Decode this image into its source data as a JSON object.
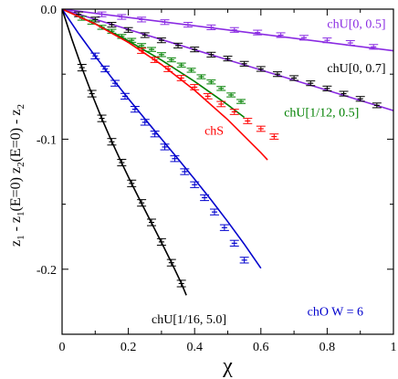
{
  "chart_data": {
    "type": "line",
    "xlabel": "χ",
    "ylabel": "z₁ - z₁(E=0)   z₂(E=0) - z₂",
    "ylabel_parts": {
      "bottom": "z",
      "bottom_sub": "1",
      "bottom_rest": " - z",
      "bottom_sub2": "1",
      "bottom_tail": "(E=0)",
      "top": "z",
      "top_sub": "2",
      "top_rest": "(E=0) - z",
      "top_sub2": "2"
    },
    "xlim": [
      0,
      1
    ],
    "ylim": [
      -0.25,
      0
    ],
    "xticks": [
      0,
      0.2,
      0.4,
      0.6,
      0.8,
      1
    ],
    "xtick_labels": [
      "0",
      "0.2",
      "0.4",
      "0.6",
      "0.8",
      "1"
    ],
    "yticks": [
      0,
      -0.1,
      -0.2
    ],
    "ytick_labels": [
      "0.0",
      "-0.1",
      "-0.2"
    ],
    "grid": false,
    "series": [
      {
        "name": "chU[0, 0.5]",
        "color": "#8a2be2",
        "fit_curve": {
          "x": [
            0,
            1
          ],
          "y": [
            0,
            -0.032
          ]
        },
        "points": {
          "x": [
            0.12,
            0.18,
            0.24,
            0.31,
            0.38,
            0.45,
            0.52,
            0.59,
            0.66,
            0.73,
            0.8,
            0.87,
            0.94
          ],
          "y": [
            -0.004,
            -0.006,
            -0.008,
            -0.01,
            -0.012,
            -0.014,
            -0.016,
            -0.018,
            -0.02,
            -0.022,
            -0.024,
            -0.026,
            -0.029
          ],
          "err": 0.0018
        }
      },
      {
        "name": "chU[0, 0.7]",
        "color": "#000000",
        "fit_curve": {
          "x": [
            0,
            0.1,
            0.2,
            0.3,
            0.4,
            0.5,
            0.6,
            0.7,
            0.8,
            0.9,
            1.0
          ],
          "y": [
            0,
            -0.0078,
            -0.0156,
            -0.0234,
            -0.0312,
            -0.039,
            -0.0468,
            -0.0546,
            -0.0624,
            -0.0702,
            -0.078
          ]
        },
        "fit_color": "#8a2be2",
        "points": {
          "x": [
            0.05,
            0.1,
            0.15,
            0.2,
            0.25,
            0.3,
            0.35,
            0.4,
            0.45,
            0.5,
            0.55,
            0.6,
            0.65,
            0.7,
            0.75,
            0.8,
            0.85,
            0.9,
            0.95
          ],
          "y": [
            -0.004,
            -0.008,
            -0.012,
            -0.016,
            -0.02,
            -0.024,
            -0.028,
            -0.031,
            -0.035,
            -0.038,
            -0.042,
            -0.046,
            -0.05,
            -0.053,
            -0.057,
            -0.061,
            -0.065,
            -0.069,
            -0.074
          ],
          "err": 0.0018
        }
      },
      {
        "name": "chU[1/12, 0.5]",
        "color": "#008000",
        "fit_curve": {
          "x": [
            0,
            0.1,
            0.2,
            0.3,
            0.4,
            0.5,
            0.55
          ],
          "y": [
            0,
            -0.0112,
            -0.0244,
            -0.0392,
            -0.0556,
            -0.0736,
            -0.0832
          ]
        },
        "points": {
          "x": [
            0.06,
            0.09,
            0.12,
            0.15,
            0.18,
            0.21,
            0.24,
            0.27,
            0.3,
            0.33,
            0.36,
            0.39,
            0.42,
            0.45,
            0.48,
            0.51,
            0.54
          ],
          "y": [
            -0.007,
            -0.01,
            -0.014,
            -0.017,
            -0.021,
            -0.024,
            -0.028,
            -0.031,
            -0.035,
            -0.039,
            -0.043,
            -0.047,
            -0.052,
            -0.056,
            -0.061,
            -0.066,
            -0.071
          ],
          "err": 0.0015
        }
      },
      {
        "name": "chS",
        "color": "#ff0000",
        "fit_curve": {
          "x": [
            0,
            0.1,
            0.2,
            0.3,
            0.4,
            0.5,
            0.6,
            0.62
          ],
          "y": [
            0,
            -0.0114,
            -0.0256,
            -0.0426,
            -0.0624,
            -0.085,
            -0.1104,
            -0.1159
          ]
        },
        "points": {
          "x": [
            0.24,
            0.28,
            0.32,
            0.36,
            0.4,
            0.44,
            0.48,
            0.52,
            0.56,
            0.6,
            0.64
          ],
          "y": [
            -0.032,
            -0.039,
            -0.046,
            -0.053,
            -0.06,
            -0.067,
            -0.073,
            -0.079,
            -0.086,
            -0.092,
            -0.098
          ],
          "err": 0.002
        }
      },
      {
        "name": "chO W = 6",
        "color": "#0000cd",
        "fit_curve": {
          "x": [
            0,
            0.05,
            0.1,
            0.15,
            0.2,
            0.25,
            0.3,
            0.35,
            0.4,
            0.45,
            0.5,
            0.55,
            0.6
          ],
          "y": [
            0,
            -0.0188,
            -0.0362,
            -0.0528,
            -0.0688,
            -0.0844,
            -0.0998,
            -0.1152,
            -0.1308,
            -0.1468,
            -0.1634,
            -0.1808,
            -0.1992
          ]
        },
        "points": {
          "x": [
            0.1,
            0.13,
            0.16,
            0.19,
            0.22,
            0.25,
            0.28,
            0.31,
            0.34,
            0.37,
            0.4,
            0.43,
            0.46,
            0.49,
            0.52,
            0.55
          ],
          "y": [
            -0.036,
            -0.046,
            -0.057,
            -0.067,
            -0.077,
            -0.087,
            -0.096,
            -0.106,
            -0.115,
            -0.125,
            -0.135,
            -0.145,
            -0.156,
            -0.168,
            -0.18,
            -0.193
          ],
          "err": 0.0022
        }
      },
      {
        "name": "chU[1/16, 5.0]",
        "color": "#000000",
        "fit_curve": {
          "x": [
            0,
            0.03,
            0.06,
            0.09,
            0.12,
            0.15,
            0.18,
            0.21,
            0.24,
            0.27,
            0.3,
            0.33,
            0.36,
            0.375
          ],
          "y": [
            0,
            -0.0234,
            -0.0452,
            -0.0654,
            -0.0842,
            -0.1018,
            -0.1184,
            -0.1342,
            -0.1494,
            -0.1644,
            -0.1794,
            -0.1948,
            -0.2108,
            -0.22
          ]
        },
        "points": {
          "x": [
            0.06,
            0.09,
            0.12,
            0.15,
            0.18,
            0.21,
            0.24,
            0.27,
            0.3,
            0.33,
            0.36
          ],
          "y": [
            -0.045,
            -0.065,
            -0.084,
            -0.102,
            -0.118,
            -0.134,
            -0.149,
            -0.164,
            -0.179,
            -0.195,
            -0.211
          ],
          "err": 0.0025
        }
      }
    ],
    "annotations": [
      {
        "text": "chU[0, 0.5]",
        "x": 0.8,
        "y": -0.0145,
        "color": "#8a2be2"
      },
      {
        "text": "chU[0, 0.7]",
        "x": 0.8,
        "y": -0.0485,
        "color": "#000000"
      },
      {
        "text": "chU[1/12, 0.5]",
        "x": 0.67,
        "y": -0.0825,
        "color": "#008000"
      },
      {
        "text": "chS",
        "x": 0.43,
        "y": -0.0965,
        "color": "#ff0000"
      },
      {
        "text": "chO W = 6",
        "x": 0.74,
        "y": -0.2355,
        "color": "#0000cd"
      },
      {
        "text": "chU[1/16, 5.0]",
        "x": 0.27,
        "y": -0.2415,
        "color": "#000000"
      }
    ]
  }
}
